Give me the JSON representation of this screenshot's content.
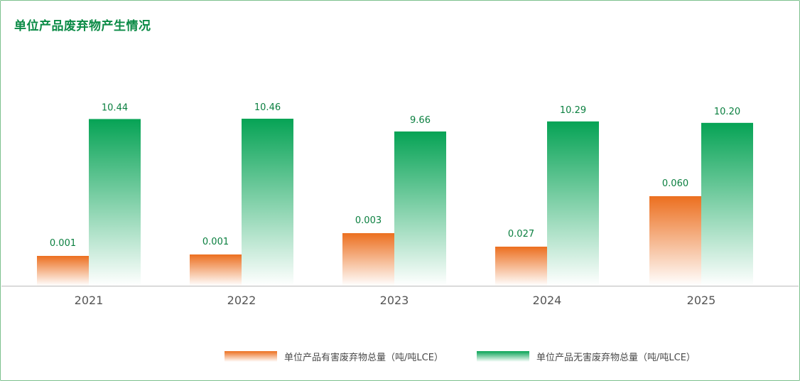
{
  "title": "单位产品废弃物产生情况",
  "colors": {
    "hazardous_top": "#ec6f1f",
    "hazardous_bottom": "#ffffff",
    "nonhazardous_top": "#06a355",
    "nonhazardous_bottom": "#ffffff",
    "label_text": "#0a7f3f",
    "axis": "#bbbbbb",
    "tick_text": "#555555",
    "frame": "#7cc08e"
  },
  "chart_data": {
    "type": "bar",
    "title": "单位产品废弃物产生情况",
    "categories": [
      "2021",
      "2022",
      "2023",
      "2024",
      "2025"
    ],
    "series": [
      {
        "name": "单位产品有害废弃物总量（吨/吨LCE）",
        "values": [
          0.001,
          0.001,
          0.003,
          0.027,
          0.06
        ],
        "labels": [
          "0.001",
          "0.001",
          "0.003",
          "0.027",
          "0.060"
        ]
      },
      {
        "name": "单位产品无害废弃物总量（吨/吨LCE）",
        "values": [
          10.44,
          10.46,
          9.66,
          10.29,
          10.2
        ],
        "labels": [
          "10.44",
          "10.46",
          "9.66",
          "10.29",
          "10.20"
        ]
      }
    ],
    "legend_position": "bottom",
    "grid": false,
    "note": "Series plotted on independent scales"
  }
}
